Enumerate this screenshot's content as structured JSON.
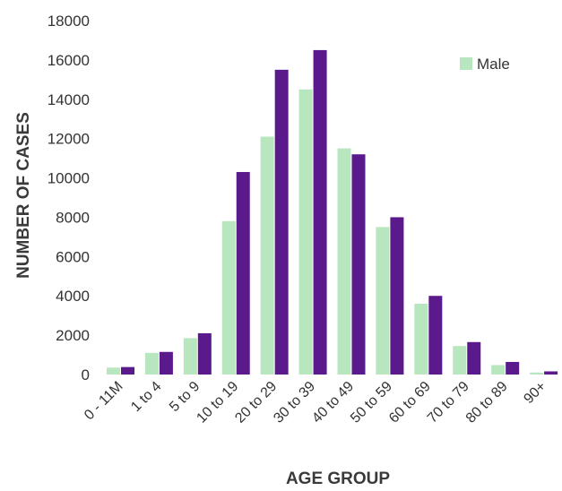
{
  "chart_data": {
    "type": "bar",
    "title": "",
    "xlabel": "AGE GROUP",
    "ylabel": "NUMBER OF CASES",
    "ylim": [
      0,
      18000
    ],
    "yticks": [
      0,
      2000,
      4000,
      6000,
      8000,
      10000,
      12000,
      14000,
      16000,
      18000
    ],
    "grid": false,
    "legend_position": "top-right",
    "categories": [
      "0 - 11M",
      "1 to 4",
      "5 to 9",
      "10 to 19",
      "20 to 29",
      "30 to 39",
      "40 to 49",
      "50 to 59",
      "60 to 69",
      "70 to 79",
      "80 to 89",
      "90+"
    ],
    "series": [
      {
        "name": "Male",
        "color": "#b8e6bf",
        "values": [
          350,
          1100,
          1850,
          7800,
          12100,
          14500,
          11500,
          7500,
          3600,
          1450,
          480,
          100
        ]
      },
      {
        "name": "",
        "color": "#5b1a8c",
        "values": [
          380,
          1150,
          2100,
          10300,
          15500,
          16500,
          11200,
          8000,
          4000,
          1650,
          640,
          160
        ]
      }
    ]
  }
}
